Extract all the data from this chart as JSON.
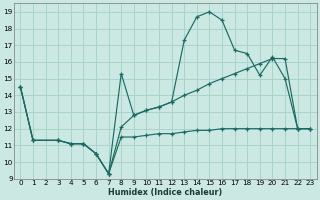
{
  "xlabel": "Humidex (Indice chaleur)",
  "xlim": [
    -0.5,
    23.5
  ],
  "ylim": [
    9,
    19.5
  ],
  "xticks": [
    0,
    1,
    2,
    3,
    4,
    5,
    6,
    7,
    8,
    9,
    10,
    11,
    12,
    13,
    14,
    15,
    16,
    17,
    18,
    19,
    20,
    21,
    22,
    23
  ],
  "yticks": [
    9,
    10,
    11,
    12,
    13,
    14,
    15,
    16,
    17,
    18,
    19
  ],
  "bg_color": "#cce8e2",
  "grid_color": "#a8d4cc",
  "line_color": "#1a6b64",
  "line1_x": [
    0,
    1,
    3,
    4,
    5,
    6,
    7,
    8,
    9,
    10,
    11,
    12,
    13,
    14,
    15,
    16,
    17,
    18,
    19,
    20,
    21,
    22,
    23
  ],
  "line1_y": [
    14.5,
    11.3,
    11.3,
    11.1,
    11.1,
    10.5,
    9.3,
    11.5,
    11.5,
    11.6,
    11.7,
    11.7,
    11.8,
    11.9,
    11.9,
    12.0,
    12.0,
    12.0,
    12.0,
    12.0,
    12.0,
    12.0,
    12.0
  ],
  "line2_x": [
    0,
    1,
    3,
    4,
    5,
    6,
    7,
    8,
    9,
    10,
    11,
    12,
    13,
    14,
    15,
    16,
    17,
    18,
    19,
    20,
    21,
    22,
    23
  ],
  "line2_y": [
    14.5,
    11.3,
    11.3,
    11.1,
    11.1,
    10.5,
    9.3,
    12.1,
    12.8,
    13.1,
    13.3,
    13.6,
    14.0,
    14.3,
    14.7,
    15.0,
    15.3,
    15.6,
    15.9,
    16.2,
    16.2,
    12.0,
    12.0
  ],
  "line3_x": [
    0,
    1,
    3,
    4,
    5,
    6,
    7,
    8,
    9,
    10,
    11,
    12,
    13,
    14,
    15,
    16,
    17,
    18,
    19,
    20,
    21,
    22,
    23
  ],
  "line3_y": [
    14.5,
    11.3,
    11.3,
    11.1,
    11.1,
    10.5,
    9.3,
    15.3,
    12.8,
    13.1,
    13.3,
    13.6,
    17.3,
    18.7,
    19.0,
    18.5,
    16.7,
    16.5,
    15.2,
    16.3,
    15.0,
    12.0,
    12.0
  ]
}
